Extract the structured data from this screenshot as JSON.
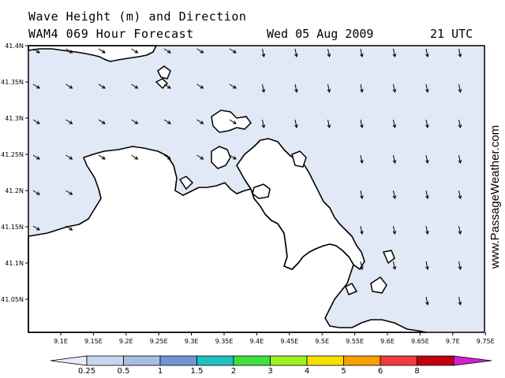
{
  "title": {
    "line1": "Wave Height (m) and Direction",
    "line2": "WAM4 069 Hour Forecast",
    "date": "Wed 05 Aug 2009",
    "time": "21 UTC"
  },
  "watermark": "www.PassageWeather.com",
  "axes": {
    "lat_labels": [
      "41.4N",
      "41.35N",
      "41.3N",
      "41.25N",
      "41.2N",
      "41.15N",
      "41.1N",
      "41.05N"
    ],
    "lon_labels": [
      "9.1E",
      "9.15E",
      "9.2E",
      "9.25E",
      "9.3E",
      "9.35E",
      "9.4E",
      "9.45E",
      "9.5E",
      "9.55E",
      "9.6E",
      "9.65E",
      "9.7E",
      "9.75E"
    ]
  },
  "colorbar": {
    "labels": [
      "0.25",
      "0.5",
      "1",
      "1.5",
      "2",
      "3",
      "4",
      "5",
      "6",
      "8"
    ],
    "colors": [
      "#e8eef8",
      "#c6d6ee",
      "#a6bee2",
      "#7294d4",
      "#20c0c0",
      "#40e040",
      "#a0f020",
      "#f8e000",
      "#f8a000",
      "#f03c3c",
      "#c00010",
      "#d020d0"
    ]
  },
  "colors": {
    "sea_low": "#e2e9f6",
    "land": "#ffffff",
    "coast": "#000000"
  }
}
